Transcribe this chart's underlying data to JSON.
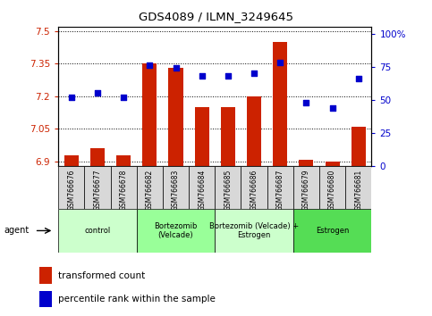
{
  "title": "GDS4089 / ILMN_3249645",
  "samples": [
    "GSM766676",
    "GSM766677",
    "GSM766678",
    "GSM766682",
    "GSM766683",
    "GSM766684",
    "GSM766685",
    "GSM766686",
    "GSM766687",
    "GSM766679",
    "GSM766680",
    "GSM766681"
  ],
  "bar_values": [
    6.93,
    6.96,
    6.93,
    7.35,
    7.33,
    7.15,
    7.15,
    7.2,
    7.45,
    6.91,
    6.9,
    7.06
  ],
  "point_values": [
    52,
    55,
    52,
    76,
    74,
    68,
    68,
    70,
    78,
    48,
    44,
    66
  ],
  "groups": [
    {
      "label": "control",
      "start": 0,
      "end": 3,
      "color": "#ccffcc"
    },
    {
      "label": "Bortezomib\n(Velcade)",
      "start": 3,
      "end": 6,
      "color": "#99ff99"
    },
    {
      "label": "Bortezomib (Velcade) +\nEstrogen",
      "start": 6,
      "end": 9,
      "color": "#ccffcc"
    },
    {
      "label": "Estrogen",
      "start": 9,
      "end": 12,
      "color": "#66ee66"
    }
  ],
  "ylim_left": [
    6.88,
    7.52
  ],
  "ylim_right": [
    0,
    105
  ],
  "yticks_left": [
    6.9,
    7.05,
    7.2,
    7.35,
    7.5
  ],
  "yticks_right": [
    0,
    25,
    50,
    75,
    100
  ],
  "ytick_labels_right": [
    "0",
    "25",
    "50",
    "75",
    "100%"
  ],
  "bar_color": "#cc2200",
  "point_color": "#0000cc",
  "bar_bottom": 6.88,
  "legend_bar_label": "transformed count",
  "legend_point_label": "percentile rank within the sample",
  "agent_label": "agent"
}
